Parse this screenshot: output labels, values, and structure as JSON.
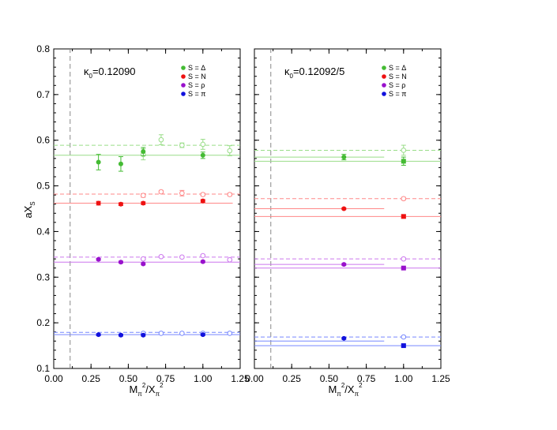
{
  "figure": {
    "ylabel": "aX",
    "ylabel_sub": "S",
    "xlabel_parts": {
      "M": "M",
      "pi_sub": "π",
      "sq": "2",
      "slash_X": "/X",
      "pi_sub2": "π",
      "sq2": "2"
    }
  },
  "chart_data": [
    {
      "type": "scatter",
      "panel": "left",
      "annotation": {
        "kappa": "κ",
        "sub": "0",
        "value": "=0.12090"
      },
      "xlim": [
        0,
        1.25
      ],
      "ylim": [
        0.1,
        0.8
      ],
      "xticks": [
        "0.00",
        "0.25",
        "0.50",
        "0.75",
        "1.00",
        "1.25"
      ],
      "yticks": [
        "0.1",
        "0.2",
        "0.3",
        "0.4",
        "0.5",
        "0.6",
        "0.7",
        "0.8"
      ],
      "vline_x": 0.11,
      "legend": [
        "S = Δ",
        "S = N",
        "S = ρ",
        "S = π"
      ],
      "colors": [
        "#44bb33",
        "#ee1111",
        "#9911cc",
        "#1111dd"
      ],
      "light_colors": [
        "#99dd88",
        "#ff8888",
        "#cc77ee",
        "#7788ff"
      ],
      "series": [
        {
          "name": "S = Δ",
          "filled": [
            [
              0.3,
              0.552,
              0.017
            ],
            [
              0.45,
              0.548,
              0.016
            ],
            [
              0.6,
              0.575,
              0.009
            ],
            [
              1.0,
              0.567,
              0.007
            ]
          ],
          "open": [
            [
              0.6,
              0.569,
              0.012
            ],
            [
              0.72,
              0.601,
              0.011
            ],
            [
              0.86,
              0.589,
              0.005
            ],
            [
              1.0,
              0.591,
              0.011
            ],
            [
              1.18,
              0.577,
              0.011
            ]
          ],
          "solid_fit": [
            0.0,
            1.25,
            0.567
          ],
          "dashed_fit": [
            0.0,
            1.25,
            0.589
          ]
        },
        {
          "name": "S = N",
          "filled": [
            [
              0.3,
              0.462,
              0.004
            ],
            [
              0.45,
              0.46,
              0.003
            ],
            [
              0.6,
              0.462,
              0.003
            ],
            [
              1.0,
              0.467,
              0.003
            ]
          ],
          "open": [
            [
              0.6,
              0.479,
              0.004
            ],
            [
              0.72,
              0.487,
              0.003
            ],
            [
              0.86,
              0.484,
              0.006
            ],
            [
              1.0,
              0.481,
              0.003
            ],
            [
              1.18,
              0.481,
              0.003
            ]
          ],
          "solid_fit": [
            0.0,
            1.2,
            0.462
          ],
          "dashed_fit": [
            0.0,
            1.25,
            0.482
          ]
        },
        {
          "name": "S = ρ",
          "filled": [
            [
              0.3,
              0.339,
              0.002
            ],
            [
              0.45,
              0.333,
              0.002
            ],
            [
              0.6,
              0.329,
              0.002
            ],
            [
              1.0,
              0.334,
              0.002
            ]
          ],
          "open": [
            [
              0.6,
              0.34,
              0.002
            ],
            [
              0.72,
              0.345,
              0.002
            ],
            [
              0.86,
              0.344,
              0.002
            ],
            [
              1.0,
              0.347,
              0.002
            ],
            [
              1.18,
              0.338,
              0.002
            ]
          ],
          "solid_fit": [
            0.0,
            1.25,
            0.333
          ],
          "dashed_fit": [
            0.0,
            1.25,
            0.344
          ]
        },
        {
          "name": "S = π",
          "filled": [
            [
              0.3,
              0.174,
              0.002
            ],
            [
              0.45,
              0.173,
              0.002
            ],
            [
              0.6,
              0.173,
              0.002
            ],
            [
              1.0,
              0.174,
              0.002
            ]
          ],
          "open": [
            [
              0.6,
              0.177,
              0.002
            ],
            [
              0.72,
              0.177,
              0.002
            ],
            [
              0.86,
              0.177,
              0.002
            ],
            [
              1.0,
              0.177,
              0.002
            ],
            [
              1.18,
              0.177,
              0.002
            ]
          ],
          "solid_fit": [
            0.0,
            1.25,
            0.174
          ],
          "dashed_fit": [
            0.0,
            1.25,
            0.179
          ]
        }
      ]
    },
    {
      "type": "scatter",
      "panel": "right",
      "annotation": {
        "kappa": "κ",
        "sub": "0",
        "value": "=0.12092/5"
      },
      "xlim": [
        0,
        1.25
      ],
      "ylim": [
        0.1,
        0.8
      ],
      "xticks": [
        "0.00",
        "0.25",
        "0.50",
        "0.75",
        "1.00",
        "1.25"
      ],
      "yticks": [],
      "vline_x": 0.11,
      "legend": [
        "S = Δ",
        "S = N",
        "S = ρ",
        "S = π"
      ],
      "colors": [
        "#44bb33",
        "#ee1111",
        "#9911cc",
        "#1111dd"
      ],
      "light_colors": [
        "#99dd88",
        "#ff8888",
        "#cc77ee",
        "#7788ff"
      ],
      "series": [
        {
          "name": "S = Δ",
          "filled_circle": [
            [
              0.6,
              0.563,
              0.006
            ]
          ],
          "filled_square": [
            [
              1.0,
              0.554,
              0.009
            ]
          ],
          "open": [
            [
              1.0,
              0.578,
              0.011
            ]
          ],
          "solid_fit_1": [
            0.0,
            0.87,
            0.563
          ],
          "solid_fit_2": [
            0.0,
            1.25,
            0.554
          ],
          "dashed_fit": [
            0.0,
            1.25,
            0.578
          ]
        },
        {
          "name": "S = N",
          "filled_circle": [
            [
              0.6,
              0.45,
              0.002
            ]
          ],
          "filled_square": [
            [
              1.0,
              0.433,
              0.003
            ]
          ],
          "open": [
            [
              1.0,
              0.472,
              0.003
            ]
          ],
          "solid_fit_1": [
            0.0,
            0.87,
            0.45
          ],
          "solid_fit_2": [
            0.0,
            1.25,
            0.433
          ],
          "dashed_fit": [
            0.0,
            1.25,
            0.472
          ]
        },
        {
          "name": "S = ρ",
          "filled_circle": [
            [
              0.6,
              0.328,
              0.002
            ]
          ],
          "filled_square": [
            [
              1.0,
              0.32,
              0.002
            ]
          ],
          "open": [
            [
              1.0,
              0.34,
              0.002
            ]
          ],
          "solid_fit_1": [
            0.0,
            0.87,
            0.328
          ],
          "solid_fit_2": [
            0.0,
            1.25,
            0.32
          ],
          "dashed_fit": [
            0.0,
            1.25,
            0.34
          ]
        },
        {
          "name": "S = π",
          "filled_circle": [
            [
              0.6,
              0.166,
              0.002
            ]
          ],
          "filled_square": [
            [
              1.0,
              0.15,
              0.002
            ]
          ],
          "open": [
            [
              1.0,
              0.169,
              0.002
            ]
          ],
          "solid_fit_1": [
            0.0,
            0.87,
            0.16
          ],
          "solid_fit_2": [
            0.0,
            1.25,
            0.15
          ],
          "dashed_fit": [
            0.0,
            1.25,
            0.169
          ]
        }
      ]
    }
  ]
}
